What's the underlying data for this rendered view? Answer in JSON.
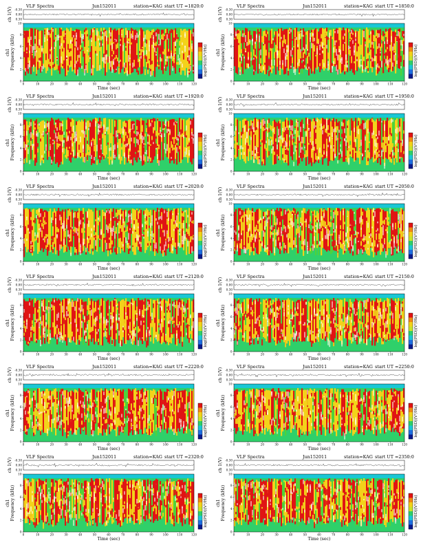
{
  "figure": {
    "title_left": "VLF Spectra",
    "date": "Jun152011",
    "station": "station=KAG",
    "start_prefix": "start  UT =",
    "colorbar_label": "log(PSD)(V²/Hz)",
    "spec_ylabel": "Frequency (kHz)",
    "series_label": "ch1",
    "wave_ylabel": "ch 1(V)",
    "xlabel": "Time (sec)"
  },
  "panels": [
    {
      "start_ut": "1820:0"
    },
    {
      "start_ut": "1850:0"
    },
    {
      "start_ut": "1920:0"
    },
    {
      "start_ut": "1950:0"
    },
    {
      "start_ut": "2020:0"
    },
    {
      "start_ut": "2050:0"
    },
    {
      "start_ut": "2120:0"
    },
    {
      "start_ut": "2150:0"
    },
    {
      "start_ut": "2220:0"
    },
    {
      "start_ut": "2250:0"
    },
    {
      "start_ut": "2320:0"
    },
    {
      "start_ut": "2350:0"
    }
  ],
  "chart_data": {
    "type": "heatmap",
    "x_ticks": [
      "0",
      "10",
      "20",
      "30",
      "40",
      "50",
      "60",
      "70",
      "80",
      "90",
      "100",
      "110",
      "120"
    ],
    "xlim": [
      0,
      120
    ],
    "spec_y_ticks": [
      "0",
      "2",
      "4",
      "6",
      "8",
      "10"
    ],
    "spec_ylim": [
      0,
      10
    ],
    "wave_y_ticks": [
      "-0.30",
      "0.00",
      "0.30"
    ],
    "wave_ylim": [
      -0.3,
      0.3
    ],
    "colormap": [
      "#0a1a8c",
      "#1f6fe0",
      "#19c7d6",
      "#2fd06a",
      "#c8e42a",
      "#f3d21a",
      "#f08a12",
      "#e01414"
    ],
    "colors": {
      "background": "#ffffff",
      "band_low": "#2fd06a",
      "band_top": "#19c7d6",
      "active_red": "#e01414",
      "active_yellow": "#f3d21a",
      "active_green": "#4fd23a"
    }
  }
}
